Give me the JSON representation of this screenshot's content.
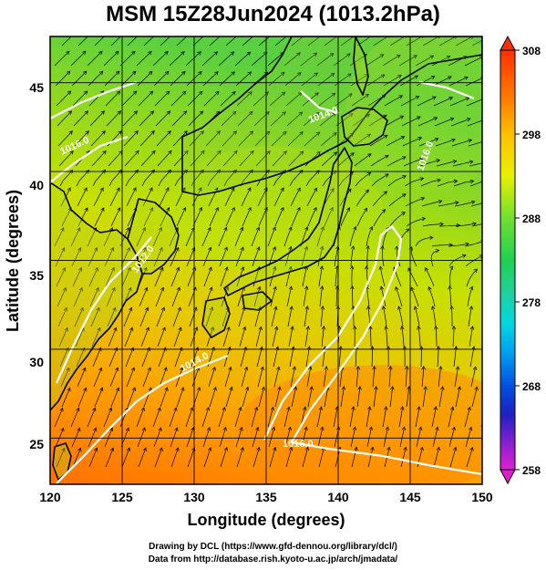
{
  "title": "MSM 15Z28Jun2024 (1013.2hPa)",
  "xlabel": "Longitude (degrees)",
  "ylabel": "Latitude  (degrees)",
  "x_ticks": [
    "120",
    "125",
    "130",
    "135",
    "140",
    "145",
    "150"
  ],
  "y_ticks": [
    "25",
    "30",
    "35",
    "40",
    "45"
  ],
  "colorbar": {
    "ticks": [
      "308",
      "298",
      "288",
      "278",
      "268",
      "258"
    ],
    "min": 258,
    "max": 308
  },
  "contour_labels": [
    "1016.0",
    "1014.0",
    "1012.0",
    "1016.0",
    "1014.0",
    "1016.0"
  ],
  "credits": {
    "line1": "Drawing by DCL (https://www.gfd-dennou.org/library/dcl/)",
    "line2": "Data from http://database.rish.kyoto-u.ac.jp/arch/jmadata/"
  },
  "colors": {
    "warm": "#ff8000",
    "mid": "#d8e000",
    "cool": "#40d840",
    "coast": "#000000",
    "isobar": "#ffffff"
  },
  "chart_data": {
    "type": "heatmap",
    "title": "MSM 15Z28Jun2024 (1013.2hPa)",
    "xlabel": "Longitude (degrees)",
    "ylabel": "Latitude  (degrees)",
    "xlim": [
      120,
      150
    ],
    "ylim": [
      22.4,
      47.6
    ],
    "color_range": [
      258,
      308
    ],
    "overlays": [
      "streamlines",
      "coastlines",
      "isobars",
      "lat-lon grid"
    ]
  }
}
